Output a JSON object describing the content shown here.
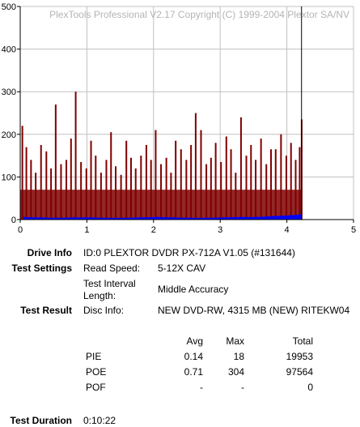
{
  "watermark": "PlexTools Professional V2.17 Copyright (C) 1999-2004 Plextor SA/NV",
  "chart_data": {
    "type": "bar",
    "x_ticks": [
      "0",
      "1",
      "2",
      "3",
      "4",
      "5"
    ],
    "y_ticks": [
      "0",
      "100",
      "200",
      "300",
      "400",
      "500"
    ],
    "xlim": [
      0,
      5
    ],
    "ylim": [
      0,
      500
    ],
    "grid": true,
    "data_end_x": 4.22,
    "series": [
      {
        "role": "PIE",
        "color": "#0000ff",
        "x": [
          0.05,
          0.3,
          0.55,
          0.8,
          1.05,
          1.3,
          1.55,
          1.8,
          2.05,
          2.3,
          2.55,
          2.8,
          3.05,
          3.3,
          3.55,
          3.8,
          4.05,
          4.2
        ],
        "values": [
          6,
          5,
          4,
          5,
          5,
          4,
          4,
          5,
          6,
          5,
          4,
          4,
          5,
          6,
          6,
          8,
          10,
          12
        ]
      },
      {
        "role": "POE",
        "color": "#800000",
        "x": [
          0.02,
          0.08,
          0.15,
          0.22,
          0.3,
          0.38,
          0.45,
          0.52,
          0.6,
          0.68,
          0.75,
          0.82,
          0.9,
          0.98,
          1.05,
          1.12,
          1.2,
          1.28,
          1.35,
          1.42,
          1.5,
          1.58,
          1.65,
          1.72,
          1.8,
          1.88,
          1.95,
          2.02,
          2.1,
          2.18,
          2.25,
          2.32,
          2.4,
          2.48,
          2.55,
          2.62,
          2.7,
          2.78,
          2.85,
          2.92,
          3.0,
          3.08,
          3.15,
          3.22,
          3.3,
          3.38,
          3.45,
          3.52,
          3.6,
          3.68,
          3.75,
          3.82,
          3.9,
          3.98,
          4.05,
          4.12,
          4.18,
          4.21
        ],
        "values": [
          220,
          170,
          140,
          110,
          175,
          160,
          120,
          270,
          130,
          140,
          190,
          300,
          135,
          120,
          185,
          150,
          110,
          140,
          205,
          125,
          105,
          185,
          145,
          120,
          150,
          175,
          140,
          210,
          130,
          145,
          110,
          185,
          165,
          140,
          175,
          250,
          210,
          130,
          145,
          180,
          135,
          195,
          165,
          110,
          240,
          150,
          175,
          140,
          190,
          130,
          165,
          165,
          200,
          150,
          180,
          140,
          170,
          235
        ]
      }
    ]
  },
  "drive_info": {
    "label": "Drive Info",
    "value": "ID:0 PLEXTOR DVDR PX-712A V1.05 (#131644)"
  },
  "test_settings": {
    "label": "Test Settings",
    "read_speed_label": "Read Speed:",
    "read_speed_value": "5-12X CAV",
    "interval_label_1": "Test Interval",
    "interval_label_2": "Length:",
    "interval_value": "Middle Accuracy"
  },
  "test_result": {
    "label": "Test Result",
    "disc_info_label": "Disc Info:",
    "disc_info_value": "NEW DVD-RW, 4315 MB (NEW) RITEKW04"
  },
  "stats": {
    "headers": {
      "avg": "Avg",
      "max": "Max",
      "total": "Total"
    },
    "rows": [
      {
        "name": "PIE",
        "avg": "0.14",
        "max": "18",
        "total": "19953"
      },
      {
        "name": "POE",
        "avg": "0.71",
        "max": "304",
        "total": "97564"
      },
      {
        "name": "POF",
        "avg": "-",
        "max": "-",
        "total": "0"
      }
    ]
  },
  "test_duration": {
    "label": "Test Duration",
    "value": "0:10:22"
  }
}
